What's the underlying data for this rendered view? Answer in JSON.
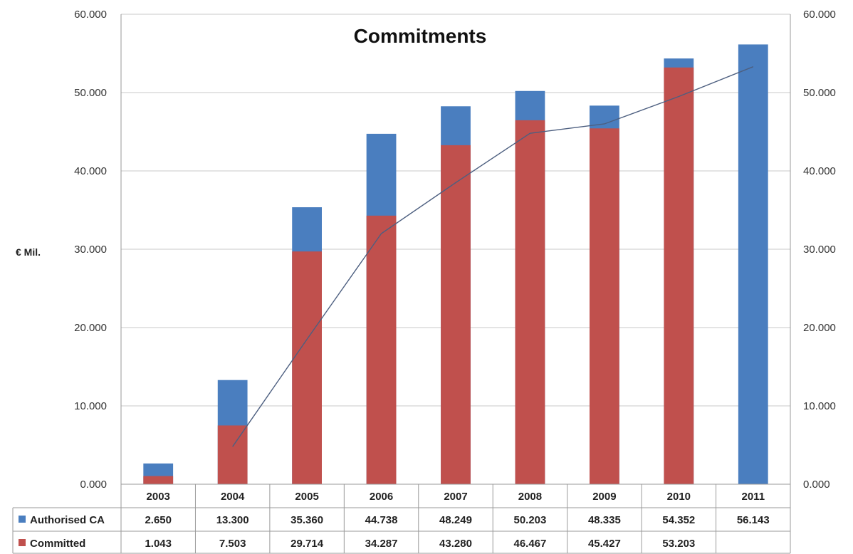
{
  "chart_data": {
    "type": "bar",
    "title": "Commitments",
    "ylabel": "€ Mil.",
    "ylim": [
      0,
      60000
    ],
    "yticks": [
      "0.000",
      "10.000",
      "20.000",
      "30.000",
      "40.000",
      "50.000",
      "60.000"
    ],
    "y2ticks": [
      "0.000",
      "10.000",
      "20.000",
      "30.000",
      "40.000",
      "50.000",
      "60.000"
    ],
    "categories": [
      "2003",
      "2004",
      "2005",
      "2006",
      "2007",
      "2008",
      "2009",
      "2010",
      "2011"
    ],
    "grid": true,
    "legend": "table-bottom",
    "series": [
      {
        "name": "Authorised CA",
        "color": "#4a7ebf",
        "values": [
          2650,
          13300,
          35360,
          44738,
          48249,
          50203,
          48335,
          54352,
          56143
        ],
        "labels": [
          "2.650",
          "13.300",
          "35.360",
          "44.738",
          "48.249",
          "50.203",
          "48.335",
          "54.352",
          "56.143"
        ]
      },
      {
        "name": "Committed",
        "color": "#c0504d",
        "values": [
          1043,
          7503,
          29714,
          34287,
          43280,
          46467,
          45427,
          53203,
          null
        ],
        "labels": [
          "1.043",
          "7.503",
          "29.714",
          "34.287",
          "43.280",
          "46.467",
          "45.427",
          "53.203",
          ""
        ]
      }
    ],
    "trend_line": {
      "color": "#4d5f80",
      "x": [
        "2004",
        "2005",
        "2006",
        "2007",
        "2008",
        "2009",
        "2010",
        "2011"
      ],
      "values": [
        4800,
        18500,
        32000,
        38500,
        44800,
        46000,
        49500,
        53300
      ]
    }
  }
}
